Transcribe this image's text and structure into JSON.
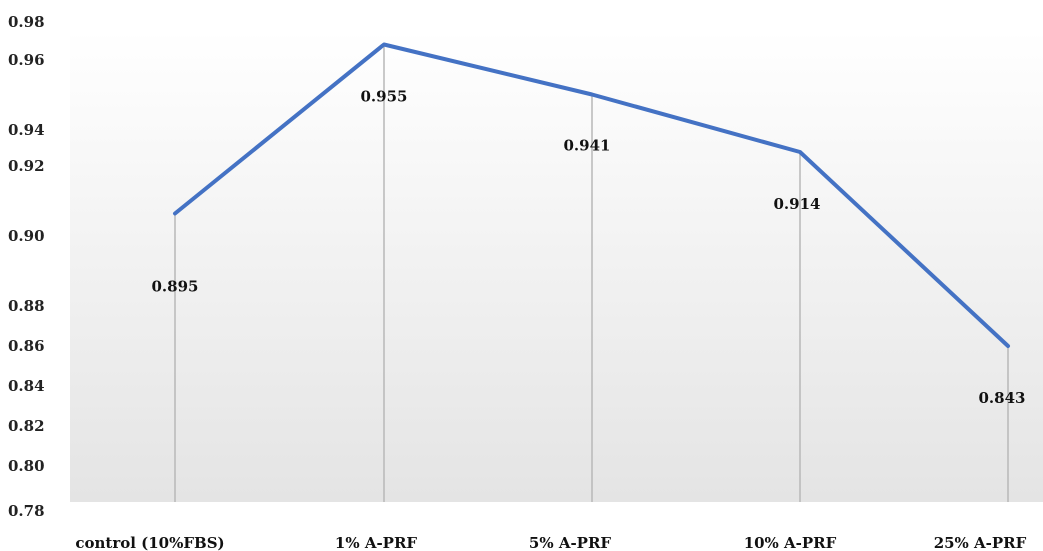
{
  "chart_data": {
    "type": "line",
    "title": "",
    "xlabel": "",
    "ylabel": "",
    "categories": [
      "control (10%FBS)",
      "1% A-PRF",
      "5% A-PRF",
      "10% A-PRF",
      "25% A-PRF"
    ],
    "series": [
      {
        "values": [
          0.895,
          0.955,
          0.941,
          0.914,
          0.843
        ],
        "data_labels": [
          "0.895",
          "0.955",
          "0.941",
          "0.914",
          "0.843"
        ],
        "color": "#4472c4"
      }
    ],
    "y_ticks": [
      "0.78",
      "0.80",
      "0.82",
      "0.84",
      "0.86",
      "0.88",
      "0.90",
      "0.92",
      "0.94",
      "0.96",
      "0.98"
    ],
    "ylim": [
      0.78,
      0.98
    ],
    "grid": false,
    "drop_lines": true,
    "legend": "none",
    "colors": {
      "line": "#4472c4",
      "drop_line": "#b8b8b8",
      "background_top": "#ffffff",
      "background_bottom": "#e4e4e4"
    }
  }
}
